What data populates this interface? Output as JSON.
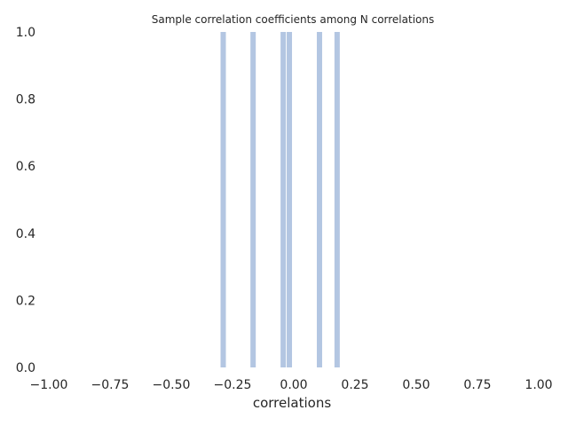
{
  "chart_data": {
    "type": "bar",
    "title": "Sample correlation coefficients among N correlations",
    "xlabel": "correlations",
    "ylabel": "",
    "xlim": [
      -1.0,
      1.0
    ],
    "ylim": [
      0.0,
      1.0
    ],
    "xticks": [
      "−1.00",
      "−0.75",
      "−0.50",
      "−0.25",
      "0.00",
      "0.25",
      "0.50",
      "0.75",
      "1.00"
    ],
    "xtick_values": [
      -1.0,
      -0.75,
      -0.5,
      -0.25,
      0.0,
      0.25,
      0.5,
      0.75,
      1.0
    ],
    "yticks": [
      "0.0",
      "0.2",
      "0.4",
      "0.6",
      "0.8",
      "1.0"
    ],
    "ytick_values": [
      0.0,
      0.2,
      0.4,
      0.6,
      0.8,
      1.0
    ],
    "grid": false,
    "bar_color": "#b3c6e2",
    "bars": [
      {
        "x": -0.288,
        "value": 1.0
      },
      {
        "x": -0.166,
        "value": 1.0
      },
      {
        "x": -0.043,
        "value": 1.0
      },
      {
        "x": -0.018,
        "value": 1.0
      },
      {
        "x": 0.105,
        "value": 1.0
      },
      {
        "x": 0.177,
        "value": 1.0
      }
    ]
  }
}
